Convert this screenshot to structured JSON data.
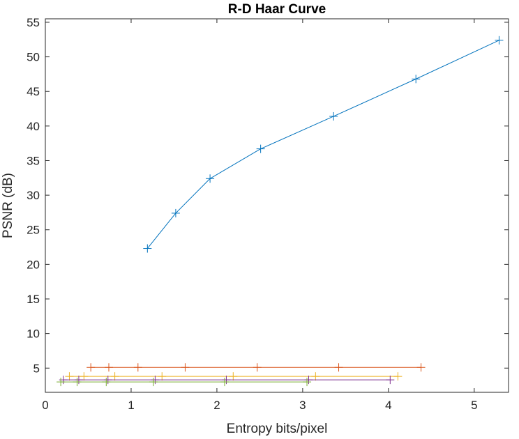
{
  "chart_data": {
    "type": "line",
    "title": "R-D Haar Curve",
    "xlabel": "Entropy bits/pixel",
    "ylabel": "PSNR (dB)",
    "xlim": [
      0,
      5.4
    ],
    "ylim": [
      1.5,
      55.5
    ],
    "xticks": [
      0,
      1,
      2,
      3,
      4,
      5
    ],
    "yticks": [
      5,
      10,
      15,
      20,
      25,
      30,
      35,
      40,
      45,
      50,
      55
    ],
    "grid": false,
    "legend": "none",
    "marker": "plus",
    "series": [
      {
        "color": "#0072BD",
        "x": [
          1.19,
          1.52,
          1.92,
          2.51,
          3.36,
          4.32,
          5.29
        ],
        "y": [
          22.3,
          27.4,
          32.4,
          36.7,
          41.4,
          46.8,
          52.4
        ]
      },
      {
        "color": "#D95319",
        "x": [
          0.53,
          0.74,
          1.08,
          1.63,
          2.47,
          3.42,
          4.38
        ],
        "y": [
          5.1,
          5.1,
          5.1,
          5.1,
          5.1,
          5.1,
          5.1
        ]
      },
      {
        "color": "#EDB120",
        "x": [
          0.28,
          0.45,
          0.81,
          1.36,
          2.19,
          3.15,
          4.11
        ],
        "y": [
          3.8,
          3.8,
          3.8,
          3.8,
          3.8,
          3.8,
          3.8
        ]
      },
      {
        "color": "#7E2F8E",
        "x": [
          0.21,
          0.39,
          0.73,
          1.28,
          2.11,
          3.07,
          4.02
        ],
        "y": [
          3.3,
          3.3,
          3.3,
          3.3,
          3.3,
          3.3,
          3.3
        ]
      },
      {
        "color": "#77AC30",
        "x": [
          0.18,
          0.37,
          0.71,
          1.26,
          2.09,
          3.05
        ],
        "y": [
          3.0,
          3.0,
          3.0,
          3.0,
          3.0,
          3.0
        ]
      }
    ]
  }
}
